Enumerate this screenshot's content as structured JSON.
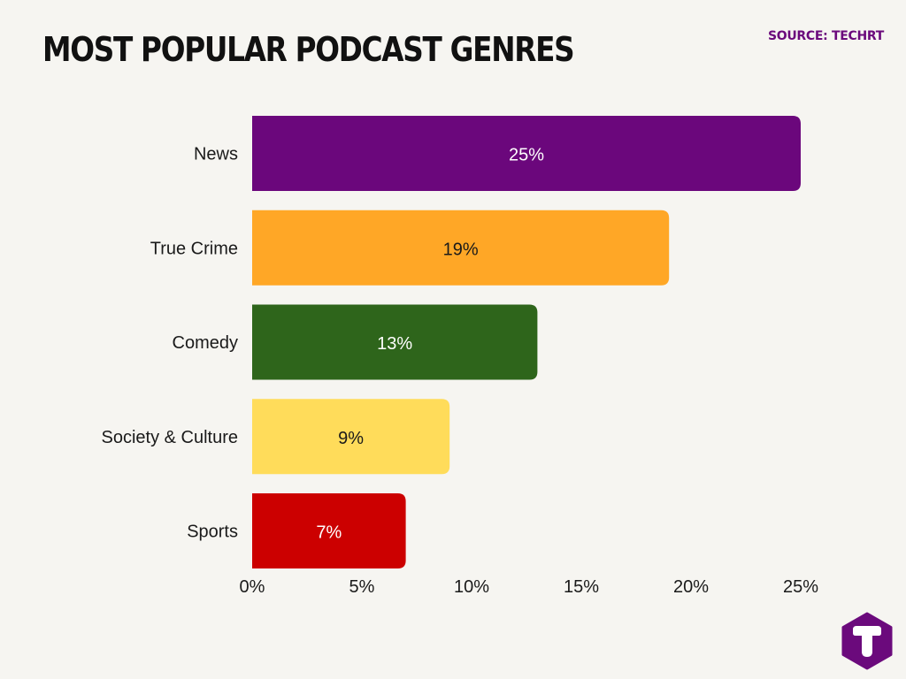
{
  "header": {
    "title": "MOST POPULAR PODCAST GENRES",
    "source": "SOURCE: TECHRT"
  },
  "logo": {
    "icon": "techrt-logo-icon",
    "color": "#6b0a7c"
  },
  "chart_data": {
    "type": "bar",
    "orientation": "horizontal",
    "categories": [
      "News",
      "True Crime",
      "Comedy",
      "Society & Culture",
      "Sports"
    ],
    "values": [
      25,
      19,
      13,
      9,
      7
    ],
    "data_labels": [
      "25%",
      "19%",
      "13%",
      "9%",
      "7%"
    ],
    "colors": [
      "#6b077c",
      "#ffa726",
      "#2e651b",
      "#ffdc5a",
      "#cc0000"
    ],
    "label_colors": [
      "#ffffff",
      "#1a1a1a",
      "#ffffff",
      "#1a1a1a",
      "#ffffff"
    ],
    "xlim": [
      0,
      25
    ],
    "x_ticks": [
      0,
      5,
      10,
      15,
      20,
      25
    ],
    "x_tick_labels": [
      "0%",
      "5%",
      "10%",
      "15%",
      "20%",
      "25%"
    ],
    "grid": false,
    "legend": "none"
  }
}
